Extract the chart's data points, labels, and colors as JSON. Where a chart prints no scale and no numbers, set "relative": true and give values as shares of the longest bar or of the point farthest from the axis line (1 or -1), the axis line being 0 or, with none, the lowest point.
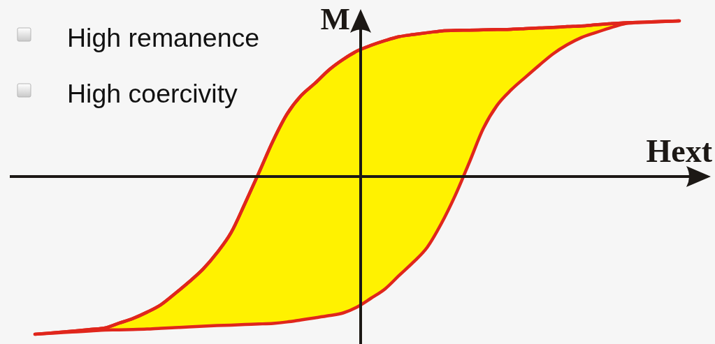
{
  "chart_data": {
    "type": "line",
    "relative": true,
    "xlabel": "Hext",
    "ylabel": "M",
    "annotations": [
      "High remanence",
      "High coercivity"
    ],
    "categories": [
      null,
      null,
      null,
      null,
      null,
      null,
      null,
      null,
      null,
      null,
      null,
      null,
      null,
      null,
      null,
      null,
      null,
      null,
      null,
      null,
      null,
      null,
      null,
      null,
      null,
      null,
      null,
      null,
      null,
      null,
      null,
      null,
      null,
      null,
      null,
      null,
      null,
      null,
      null,
      null,
      null,
      null,
      null,
      null,
      null,
      null,
      null
    ],
    "series": [
      {
        "color": "#e0261c",
        "values": [
          -1.0,
          -0.993,
          -0.986,
          -0.978,
          -0.969,
          -0.96,
          -0.93,
          -0.9,
          -0.86,
          -0.812,
          -0.742,
          -0.668,
          -0.587,
          -0.483,
          -0.356,
          -0.169,
          0.027,
          0.227,
          0.397,
          0.513,
          0.592,
          0.677,
          0.743,
          0.796,
          0.832,
          0.862,
          0.887,
          0.9,
          0.912,
          0.923,
          0.927,
          0.928,
          0.93,
          0.932,
          0.934,
          0.938,
          0.942,
          0.946,
          0.951,
          0.955,
          0.962,
          0.969,
          0.975,
          0.978,
          0.981,
          0.984,
          0.987
        ],
        "lower": [
          -1.0,
          -0.995,
          -0.989,
          -0.984,
          -0.979,
          -0.973,
          -0.972,
          -0.97,
          -0.967,
          -0.962,
          -0.958,
          -0.954,
          -0.949,
          -0.945,
          -0.942,
          -0.938,
          -0.935,
          -0.931,
          -0.922,
          -0.909,
          -0.896,
          -0.882,
          -0.865,
          -0.827,
          -0.771,
          -0.712,
          -0.627,
          -0.544,
          -0.449,
          -0.3,
          -0.12,
          0.088,
          0.304,
          0.453,
          0.55,
          0.629,
          0.706,
          0.779,
          0.836,
          0.881,
          0.912,
          0.941,
          0.967,
          0.976,
          0.979,
          0.983,
          0.987
        ],
        "upper": [
          -1.0,
          -0.993,
          -0.986,
          -0.978,
          -0.969,
          -0.96,
          -0.93,
          -0.9,
          -0.86,
          -0.812,
          -0.742,
          -0.668,
          -0.587,
          -0.483,
          -0.356,
          -0.169,
          0.027,
          0.227,
          0.397,
          0.513,
          0.592,
          0.677,
          0.743,
          0.796,
          0.832,
          0.862,
          0.887,
          0.9,
          0.912,
          0.923,
          0.927,
          0.928,
          0.93,
          0.932,
          0.934,
          0.938,
          0.942,
          0.946,
          0.951,
          0.955,
          0.962,
          0.969,
          0.975,
          0.978,
          0.981,
          0.984,
          0.987
        ]
      }
    ]
  }
}
